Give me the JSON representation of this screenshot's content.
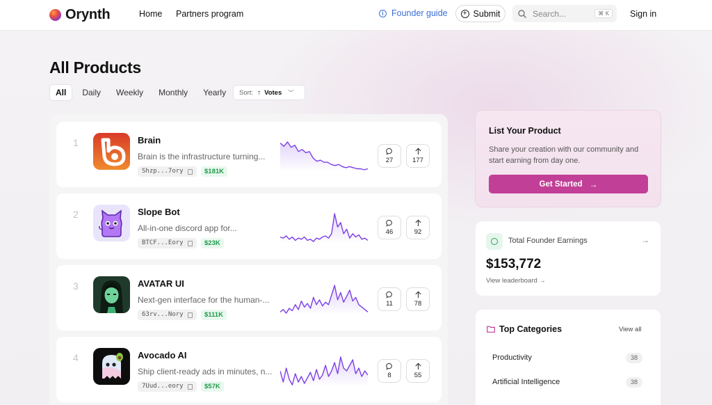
{
  "header": {
    "brand": "Orynth",
    "nav": [
      "Home",
      "Partners program"
    ],
    "founder_guide": "Founder guide",
    "submit": "Submit",
    "search_placeholder": "Search...",
    "search_shortcut": "⌘ K",
    "sign_in": "Sign in"
  },
  "page": {
    "title": "All Products",
    "filters": [
      "All",
      "Daily",
      "Weekly",
      "Monthly",
      "Yearly"
    ],
    "active_filter": "All",
    "sort_label": "Sort:",
    "sort_value": "Votes"
  },
  "products": [
    {
      "rank": "1",
      "name": "Brain",
      "description": "Brain is the infrastructure turning...",
      "address": "Shzp...7ory",
      "earnings": "$181K",
      "comments": "27",
      "votes": "177",
      "trend": [
        30,
        27,
        31,
        26,
        28,
        22,
        24,
        21,
        22,
        16,
        13,
        14,
        12,
        12,
        10,
        9,
        10,
        8,
        7,
        8,
        7,
        6,
        6,
        5,
        6
      ]
    },
    {
      "rank": "2",
      "name": "Slope Bot",
      "description": "All-in-one discord app for...",
      "address": "BTCF...Eory",
      "earnings": "$23K",
      "comments": "46",
      "votes": "92",
      "trend": [
        9,
        8,
        10,
        7,
        9,
        6,
        8,
        7,
        9,
        6,
        7,
        5,
        8,
        7,
        9,
        10,
        8,
        12,
        30,
        18,
        22,
        12,
        16,
        8,
        12,
        9,
        11,
        7,
        8,
        6
      ]
    },
    {
      "rank": "3",
      "name": "AVATAR UI",
      "description": "Next-gen interface for the human-...",
      "address": "63rv...Nory",
      "earnings": "$111K",
      "comments": "11",
      "votes": "78",
      "trend": [
        6,
        8,
        5,
        9,
        7,
        12,
        8,
        15,
        10,
        13,
        9,
        18,
        12,
        16,
        11,
        14,
        12,
        20,
        28,
        16,
        22,
        14,
        19,
        24,
        15,
        18,
        12,
        10,
        8,
        6
      ]
    },
    {
      "rank": "4",
      "name": "Avocado AI",
      "description": "Ship client-ready ads in minutes, n...",
      "address": "7Uud...eory",
      "earnings": "$57K",
      "comments": "8",
      "votes": "55",
      "trend": [
        18,
        10,
        20,
        12,
        8,
        16,
        10,
        14,
        9,
        13,
        17,
        11,
        19,
        12,
        15,
        22,
        14,
        18,
        24,
        16,
        28,
        20,
        18,
        22,
        26,
        16,
        20,
        14,
        18,
        15
      ]
    }
  ],
  "list_your_product": {
    "title": "List Your Product",
    "description": "Share your creation with our community and start earning from day one.",
    "cta": "Get Started"
  },
  "earnings": {
    "label": "Total Founder Earnings",
    "amount": "$153,772",
    "link": "View leaderboard →"
  },
  "categories": {
    "title": "Top Categories",
    "view_all": "View all",
    "items": [
      {
        "name": "Productivity",
        "count": "38"
      },
      {
        "name": "Artificial Intelligence",
        "count": "38"
      }
    ]
  },
  "colors": {
    "accent": "#c23f97",
    "chart": "#7b3fe4",
    "earn_green": "#1f9a4a",
    "link_blue": "#3a6fd8"
  }
}
